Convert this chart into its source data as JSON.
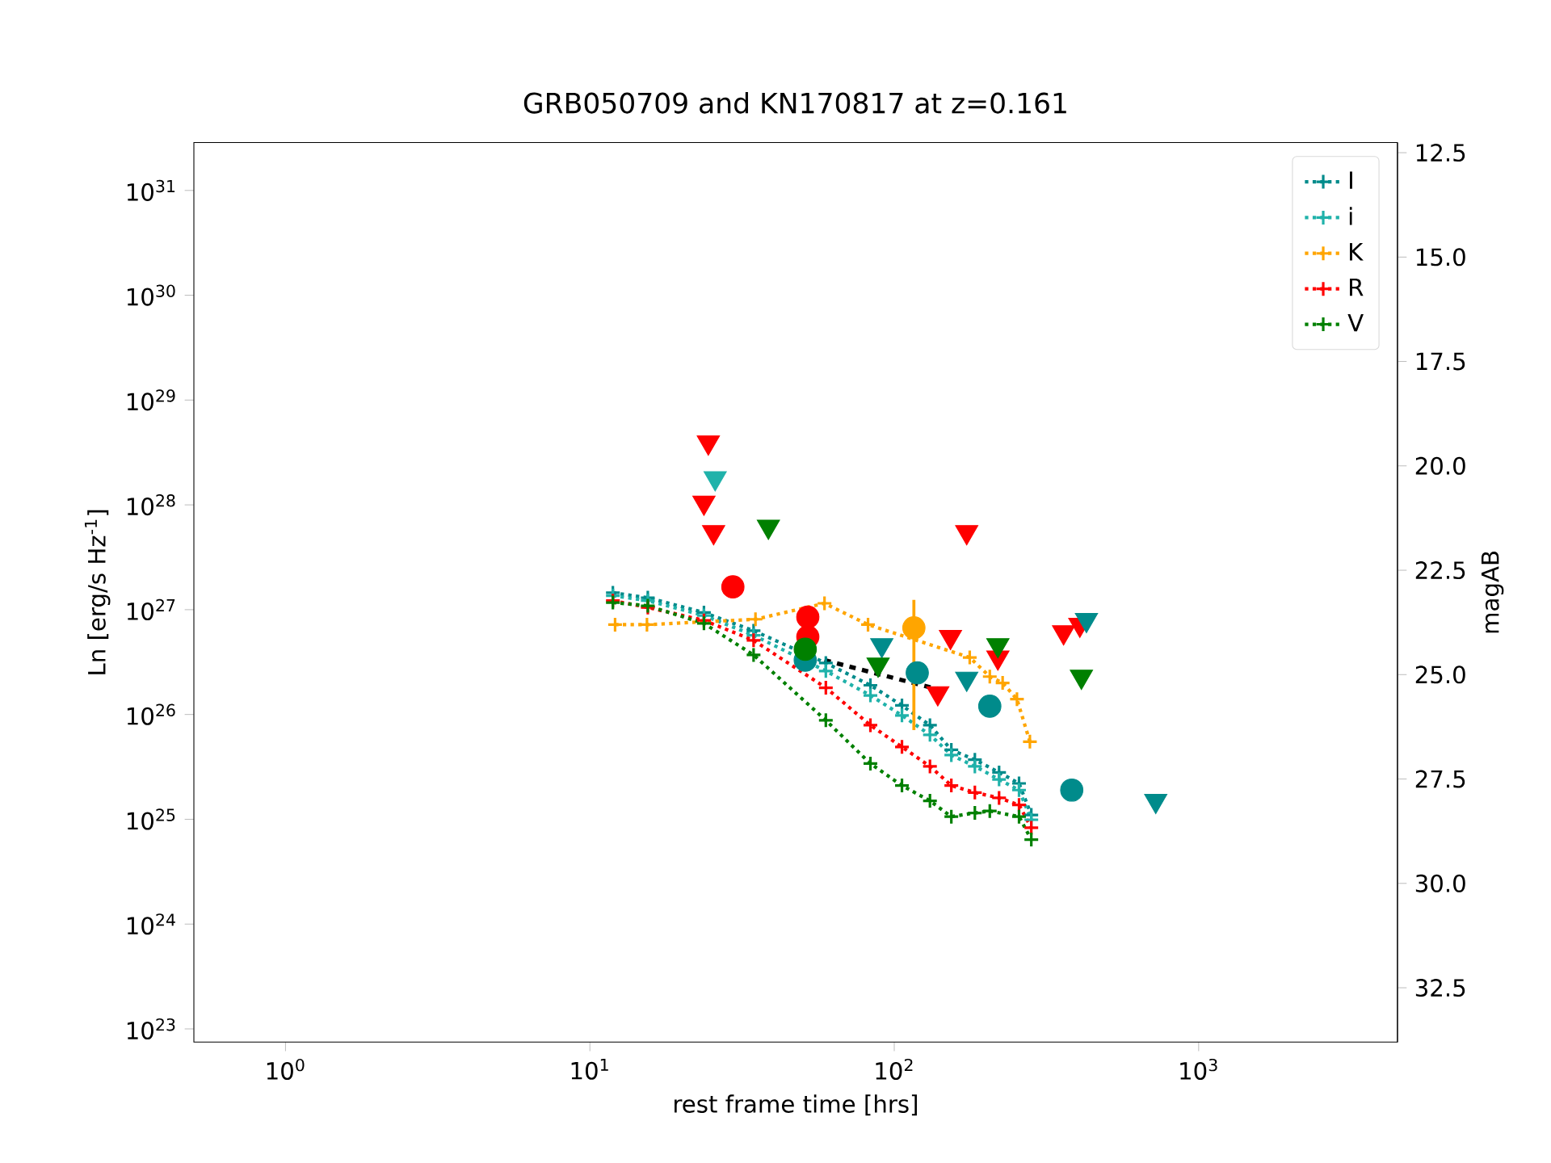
{
  "chart_data": {
    "type": "scatter",
    "title": "GRB050709 and KN170817 at z=0.161",
    "xlabel": "rest frame time [hrs]",
    "ylabel": "Ln [erg/s Hz$^{-1}$]",
    "y2label": "magAB",
    "log": "xy",
    "legend": "top right",
    "xlim": [
      0.5,
      4500
    ],
    "ylim": [
      7.5e+22,
      2.86e+31
    ],
    "y2lim": [
      33.8,
      12.26
    ],
    "xticks": [
      {
        "value": 1,
        "label": "10$^{0}$"
      },
      {
        "value": 10,
        "label": "10$^{1}$"
      },
      {
        "value": 100,
        "label": "10$^{2}$"
      },
      {
        "value": 1000,
        "label": "10$^{3}$"
      }
    ],
    "yticks": [
      {
        "value": 1e+23,
        "label": "10$^{23}$"
      },
      {
        "value": 1e+24,
        "label": "10$^{24}$"
      },
      {
        "value": 1e+25,
        "label": "10$^{25}$"
      },
      {
        "value": 1e+26,
        "label": "10$^{26}$"
      },
      {
        "value": 1e+27,
        "label": "10$^{27}$"
      },
      {
        "value": 1e+28,
        "label": "10$^{28}$"
      },
      {
        "value": 1e+29,
        "label": "10$^{29}$"
      },
      {
        "value": 1e+30,
        "label": "10$^{30}$"
      },
      {
        "value": 1e+31,
        "label": "10$^{31}$"
      }
    ],
    "y2ticks": [
      {
        "value": 12.5,
        "label": "12.5"
      },
      {
        "value": 15,
        "label": "15.0"
      },
      {
        "value": 17.5,
        "label": "17.5"
      },
      {
        "value": 20,
        "label": "20.0"
      },
      {
        "value": 22.5,
        "label": "22.5"
      },
      {
        "value": 25,
        "label": "25.0"
      },
      {
        "value": 27.5,
        "label": "27.5"
      },
      {
        "value": 30,
        "label": "30.0"
      },
      {
        "value": 32.5,
        "label": "32.5"
      }
    ],
    "series": [
      {
        "name": "I",
        "type": "line",
        "marker": "cross",
        "line_style": "dotted",
        "color": "#008b8b",
        "x": [
          11.9,
          15.5,
          23.7,
          34.5,
          59.6,
          83.5,
          106,
          131,
          154,
          184,
          221,
          257,
          282
        ],
        "values": [
          1.45e+27,
          1.3e+27,
          9.4e+26,
          6.3e+26,
          3.1e+26,
          1.9e+26,
          1.22e+26,
          7.9e+25,
          4.6e+25,
          3.7e+25,
          2.8e+25,
          2.2e+25,
          1.1e+25
        ]
      },
      {
        "name": "i",
        "type": "line",
        "marker": "cross",
        "line_style": "dotted",
        "color": "#20b2aa",
        "x": [
          11.9,
          15.5,
          23.7,
          34.5,
          59.6,
          83.5,
          106,
          131,
          154,
          184,
          221,
          257,
          282
        ],
        "values": [
          1.36e+27,
          1.22e+27,
          8.8e+26,
          5.7e+26,
          2.6e+26,
          1.52e+26,
          9.8e+25,
          6.4e+25,
          4.1e+25,
          3.2e+25,
          2.4e+25,
          1.9e+25,
          9.9e+24
        ]
      },
      {
        "name": "K",
        "type": "line",
        "marker": "cross",
        "line_style": "dotted",
        "color": "#ffa500",
        "x": [
          12.1,
          15.4,
          35,
          59,
          82,
          177,
          206,
          227,
          253,
          279
        ],
        "values": [
          7.2e+26,
          7.2e+26,
          8.1e+26,
          1.15e+27,
          7.2e+26,
          3.5e+26,
          2.3e+26,
          2e+26,
          1.4e+26,
          5.5e+25
        ]
      },
      {
        "name": "R",
        "type": "line",
        "marker": "cross",
        "line_style": "dotted",
        "color": "#ff0000",
        "x": [
          11.9,
          15.5,
          23.7,
          34.5,
          59.6,
          83.5,
          106,
          131,
          154,
          184,
          221,
          257,
          282
        ],
        "values": [
          1.22e+27,
          1.05e+27,
          7.9e+26,
          5.1e+26,
          1.8e+26,
          7.9e+25,
          4.9e+25,
          3.2e+25,
          2.1e+25,
          1.8e+25,
          1.6e+25,
          1.37e+25,
          8.3e+24
        ]
      },
      {
        "name": "V",
        "type": "line",
        "marker": "cross",
        "line_style": "dotted",
        "color": "#008000",
        "x": [
          11.9,
          15.5,
          23.7,
          34.5,
          59.6,
          83.5,
          106,
          131,
          154,
          184,
          206,
          257,
          282
        ],
        "values": [
          1.17e+27,
          1.09e+27,
          7.4e+26,
          3.7e+26,
          8.8e+25,
          3.4e+25,
          2.1e+25,
          1.5e+25,
          1.06e+25,
          1.15e+25,
          1.2e+25,
          1.06e+25,
          6.4e+24
        ]
      },
      {
        "type": "line",
        "marker": "none",
        "line_style": "dashed",
        "color": "#000000",
        "x": [
          59,
          77,
          139
        ],
        "values": [
          3.3e+26,
          2.7e+26,
          1.74e+26
        ]
      },
      {
        "marker": "triangle",
        "color": "#ff0000",
        "x": [
          24.5,
          23.7,
          25.5,
          173,
          153,
          139,
          219,
          360,
          407
        ],
        "values": [
          3.95e+28,
          1.05e+28,
          5.5e+27,
          5.5e+27,
          5.5e+26,
          1.6e+26,
          3.5e+26,
          6.1e+26,
          7.2e+26
        ]
      },
      {
        "marker": "triangle",
        "color": "#20b2aa",
        "x": [
          25.8
        ],
        "values": [
          1.8e+28
        ]
      },
      {
        "marker": "triangle",
        "color": "#008b8b",
        "x": [
          91,
          173,
          428,
          723
        ],
        "values": [
          4.6e+26,
          2.2e+26,
          8e+26,
          1.5e+25
        ]
      },
      {
        "marker": "triangle",
        "color": "#008000",
        "x": [
          38.6,
          88.5,
          219,
          412
        ],
        "values": [
          6.2e+27,
          3e+26,
          4.6e+26,
          2.3e+26
        ]
      },
      {
        "marker": "circle",
        "color": "#008b8b",
        "x": [
          51,
          119,
          206,
          383
        ],
        "values": [
          3.3e+26,
          2.5e+26,
          1.2e+26,
          1.9e+25
        ]
      },
      {
        "marker": "circle",
        "color": "#ff0000",
        "x": [
          29.5,
          52,
          52
        ],
        "values": [
          1.65e+27,
          8.5e+26,
          5.5e+26
        ]
      },
      {
        "marker": "circle",
        "color": "#008000",
        "x": [
          51
        ],
        "values": [
          4.2e+26
        ]
      },
      {
        "marker": "circle",
        "color": "#ffa500",
        "x": [
          116
        ],
        "values": [
          6.7e+26
        ],
        "errors": [
          [
            7.1e+25,
            1.24e+27
          ]
        ]
      }
    ]
  }
}
